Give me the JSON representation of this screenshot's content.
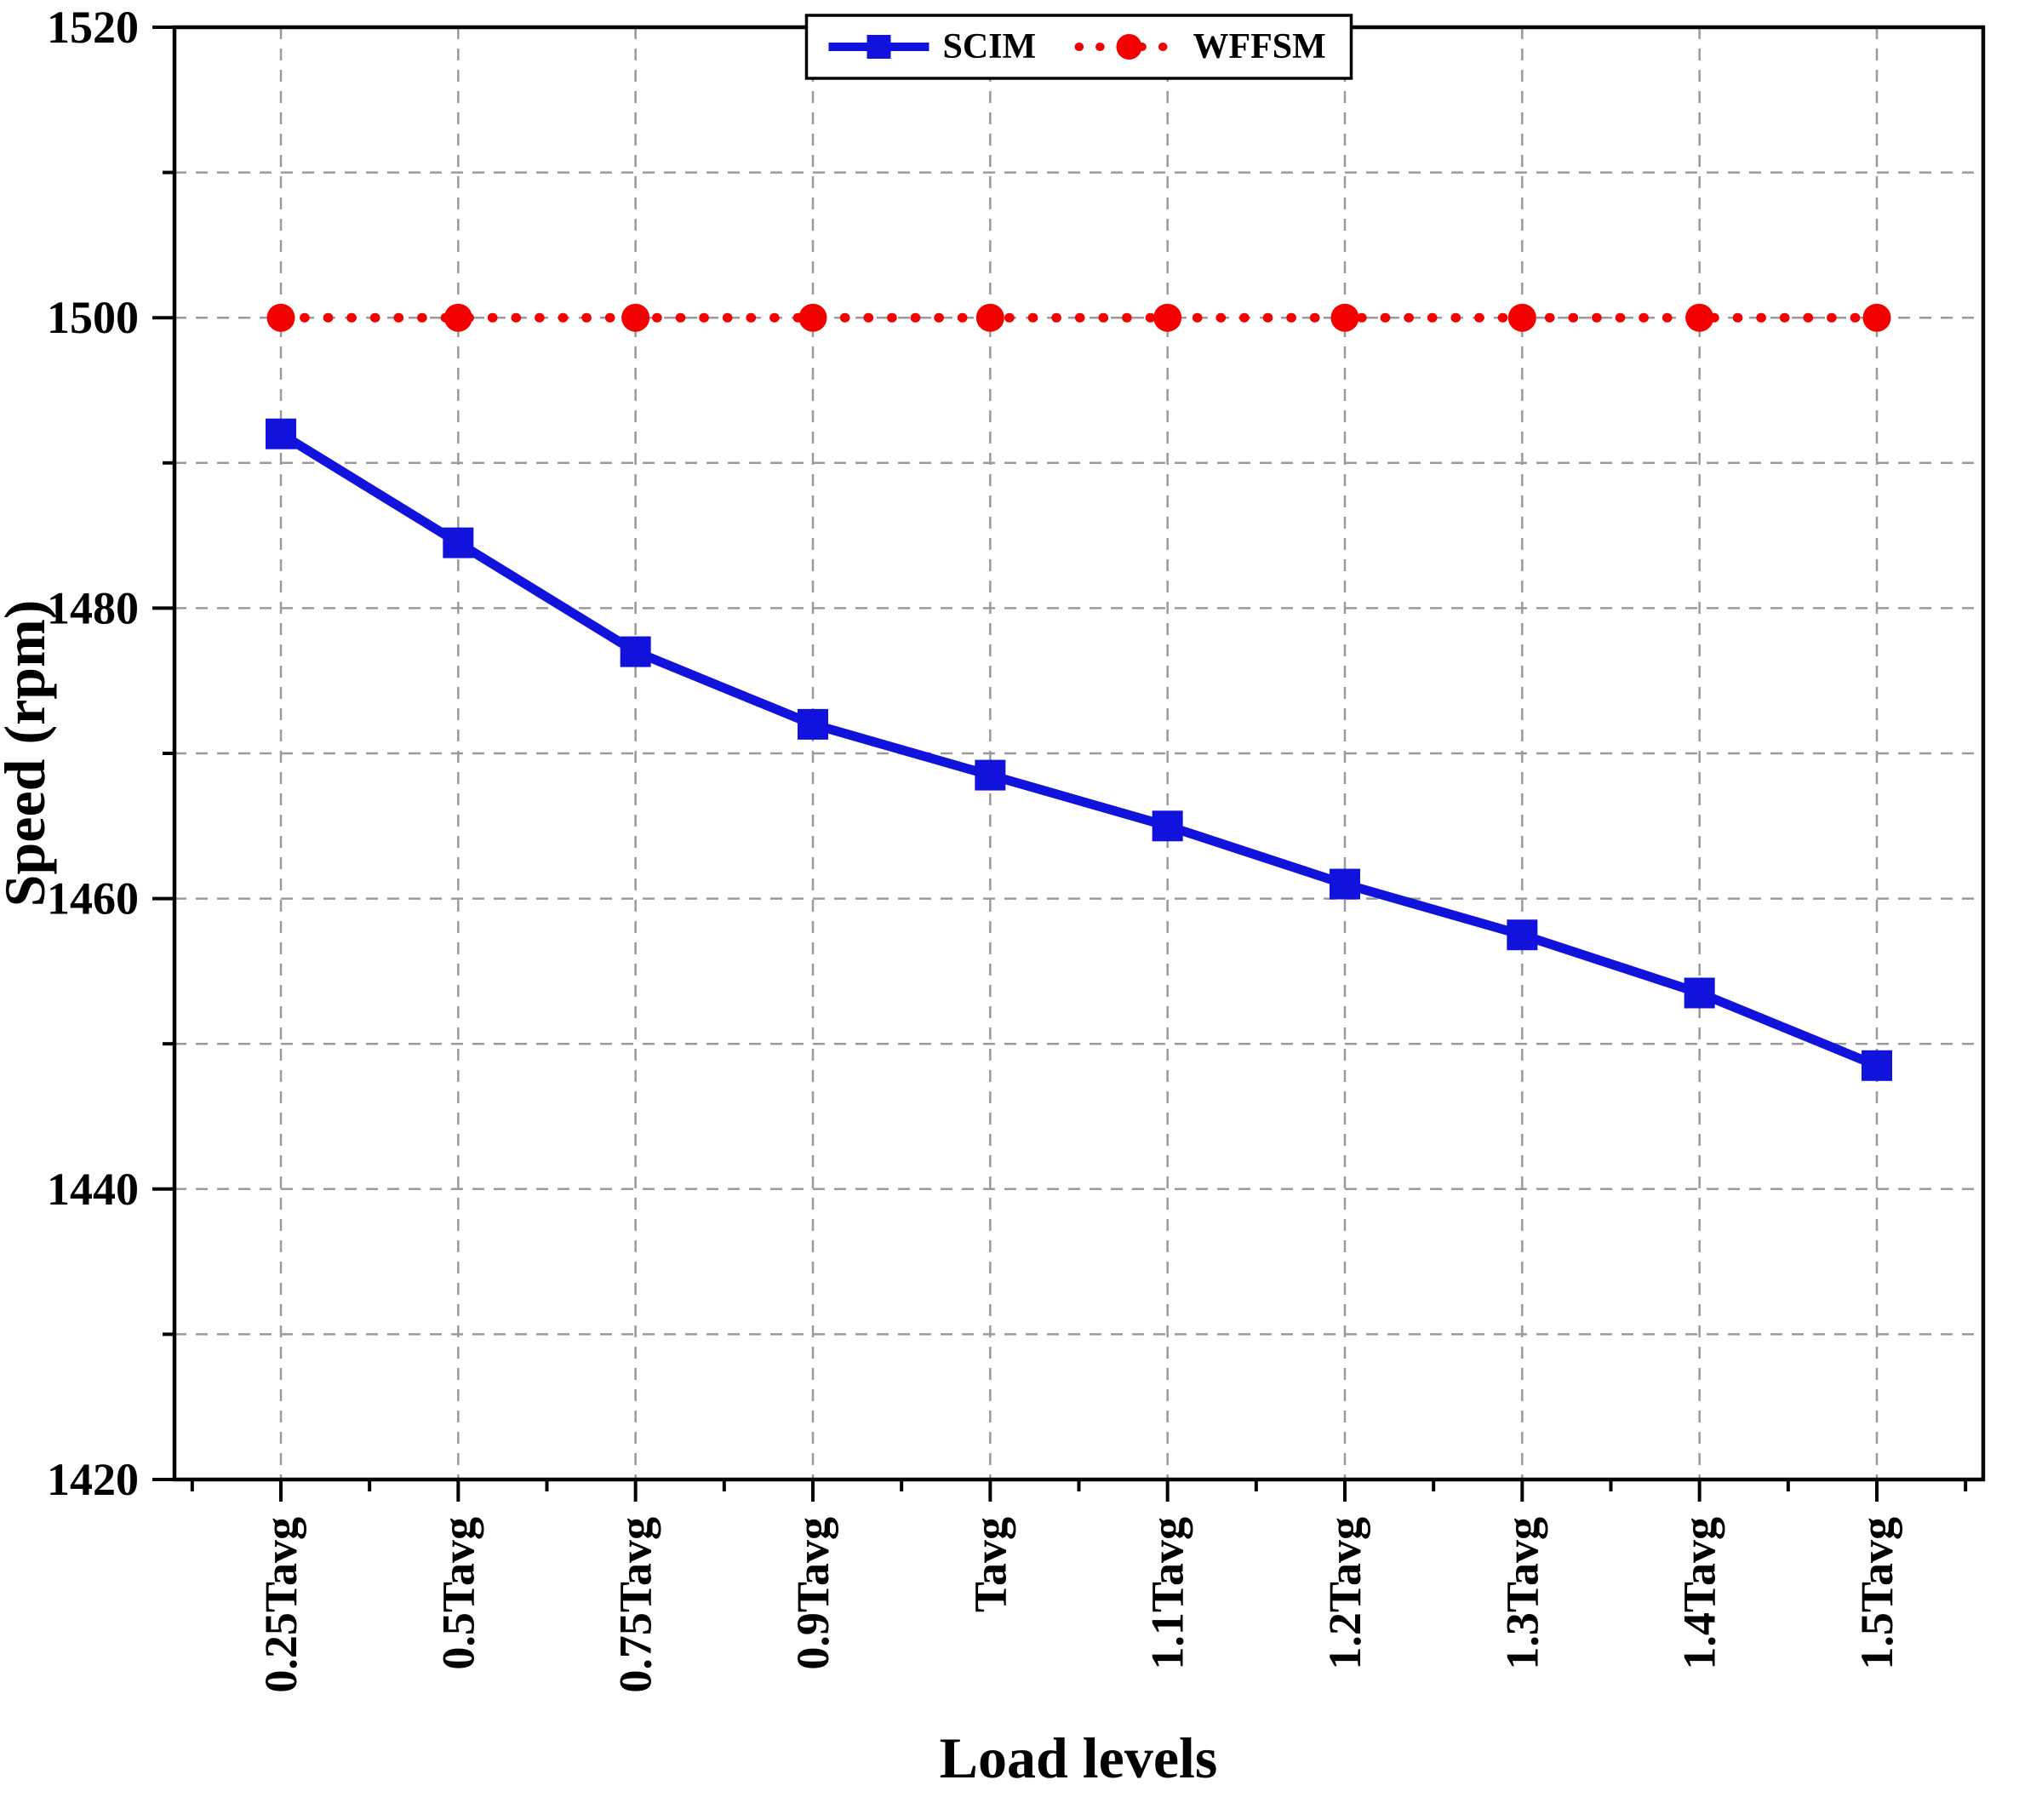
{
  "chart_data": {
    "type": "line",
    "title": "",
    "xlabel": "Load levels",
    "ylabel": "Speed (rpm)",
    "categories": [
      "0.25Tavg",
      "0.5Tavg",
      "0.75Tavg",
      "0.9Tavg",
      "Tavg",
      "1.1Tavg",
      "1.2Tavg",
      "1.3Tavg",
      "1.4Tavg",
      "1.5Tavg"
    ],
    "series": [
      {
        "name": "SCIM",
        "color": "#1212dd",
        "marker": "square",
        "line_style": "solid",
        "values": [
          1492,
          1484.5,
          1477,
          1472,
          1468.5,
          1465,
          1461,
          1457.5,
          1453.5,
          1448.5
        ]
      },
      {
        "name": "WFFSM",
        "color": "#f30000",
        "marker": "circle",
        "line_style": "dotted",
        "values": [
          1500,
          1500,
          1500,
          1500,
          1500,
          1500,
          1500,
          1500,
          1500,
          1500
        ]
      }
    ],
    "ylim": [
      1420,
      1520
    ],
    "y_major_ticks": [
      1420,
      1440,
      1460,
      1480,
      1500,
      1520
    ],
    "y_minor_step": 10,
    "grid": true,
    "legend_position": "top-center"
  }
}
